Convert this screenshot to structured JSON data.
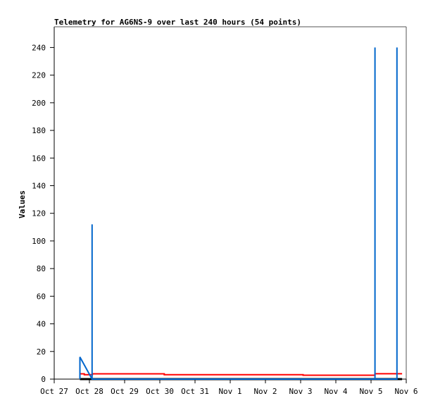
{
  "chart_data": {
    "type": "line",
    "title": "Telemetry for AG6NS-9 over last 240 hours (54 points)",
    "xlabel": "",
    "ylabel": "Values",
    "xlim": [
      "2023-10-27T00:00",
      "2023-11-06T00:00"
    ],
    "ylim": [
      0,
      255
    ],
    "x_tick_labels": [
      "Oct 27",
      "Oct 28",
      "Oct 29",
      "Oct 30",
      "Oct 31",
      "Nov 1",
      "Nov 2",
      "Nov 3",
      "Nov 4",
      "Nov 5",
      "Nov 6"
    ],
    "y_ticks": [
      0,
      20,
      40,
      60,
      80,
      100,
      120,
      140,
      160,
      180,
      200,
      220,
      240
    ],
    "grid": false,
    "series": [
      {
        "color": "#000000",
        "points": [
          [
            "2023-10-27T17:30",
            0
          ],
          [
            "2023-11-05T21:10",
            0
          ]
        ]
      },
      {
        "color": "#ff0000",
        "points": [
          [
            "2023-10-27T17:30",
            3.8
          ],
          [
            "2023-10-27T20:30",
            3.8
          ],
          [
            "2023-10-27T20:30",
            3.2
          ],
          [
            "2023-10-28T02:00",
            3.2
          ],
          [
            "2023-10-28T02:00",
            3.8
          ],
          [
            "2023-10-30T03:00",
            3.8
          ],
          [
            "2023-10-30T03:00",
            3.2
          ],
          [
            "2023-11-03T01:40",
            3.2
          ],
          [
            "2023-11-03T01:40",
            2.8
          ],
          [
            "2023-11-05T02:40",
            2.8
          ],
          [
            "2023-11-05T02:40",
            3.9
          ],
          [
            "2023-11-05T21:10",
            3.9
          ]
        ]
      },
      {
        "color": "#0066cc",
        "points": [
          [
            "2023-10-27T17:30",
            0
          ],
          [
            "2023-10-27T17:30",
            16
          ],
          [
            "2023-10-28T01:50",
            0
          ],
          [
            "2023-10-28T01:50",
            112
          ],
          [
            "2023-10-28T01:50",
            0
          ],
          [
            "2023-11-05T02:40",
            0
          ],
          [
            "2023-11-05T02:40",
            240
          ],
          [
            "2023-11-05T02:40",
            0
          ],
          [
            "2023-11-05T17:40",
            0
          ],
          [
            "2023-11-05T17:40",
            240
          ],
          [
            "2023-11-05T17:40",
            0
          ]
        ]
      }
    ]
  }
}
